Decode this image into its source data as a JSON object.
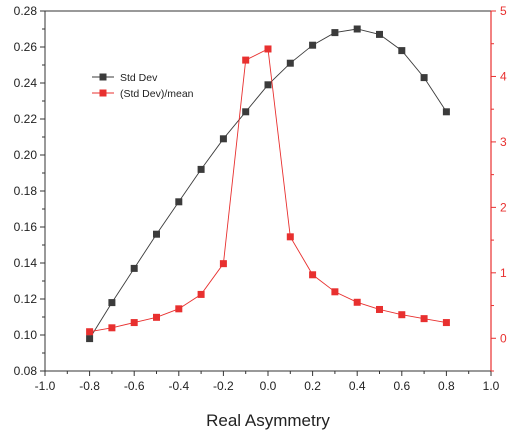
{
  "chart_data": {
    "type": "line",
    "xlabel": "Real Asymmetry",
    "ylabel": "",
    "ylabel_right": "",
    "xlim": [
      -1.0,
      1.0
    ],
    "ylim": [
      0.08,
      0.28
    ],
    "ylim_right": [
      -0.5,
      5
    ],
    "x_ticks": [
      "-1.0",
      "-0.8",
      "-0.6",
      "-0.4",
      "-0.2",
      "0.0",
      "0.2",
      "0.4",
      "0.6",
      "0.8",
      "1.0"
    ],
    "y_ticks": [
      "0.08",
      "0.10",
      "0.12",
      "0.14",
      "0.16",
      "0.18",
      "0.20",
      "0.22",
      "0.24",
      "0.26",
      "0.28"
    ],
    "y_right_ticks": [
      "0",
      "1",
      "2",
      "3",
      "4",
      "5"
    ],
    "right_axis_color": "#e8302f",
    "grid": false,
    "legend_position": "top-left",
    "series": [
      {
        "name": "Std Dev",
        "axis": "left",
        "color": "#3b3b3b",
        "marker": "square",
        "x": [
          -0.8,
          -0.7,
          -0.6,
          -0.5,
          -0.4,
          -0.3,
          -0.2,
          -0.1,
          0.0,
          0.1,
          0.2,
          0.3,
          0.4,
          0.5,
          0.6,
          0.7,
          0.8
        ],
        "y": [
          0.098,
          0.118,
          0.137,
          0.156,
          0.174,
          0.192,
          0.209,
          0.224,
          0.239,
          0.251,
          0.261,
          0.268,
          0.27,
          0.267,
          0.258,
          0.243,
          0.224
        ]
      },
      {
        "name": "(Std Dev)/mean",
        "axis": "right",
        "color": "#e8302f",
        "marker": "square",
        "x": [
          -0.8,
          -0.7,
          -0.6,
          -0.5,
          -0.4,
          -0.3,
          -0.2,
          -0.1,
          0.0,
          0.1,
          0.2,
          0.3,
          0.4,
          0.5,
          0.6,
          0.7,
          0.8
        ],
        "y": [
          0.1,
          0.16,
          0.24,
          0.32,
          0.45,
          0.67,
          1.14,
          4.25,
          4.42,
          1.55,
          0.97,
          0.71,
          0.55,
          0.44,
          0.36,
          0.3,
          0.24
        ]
      }
    ]
  }
}
